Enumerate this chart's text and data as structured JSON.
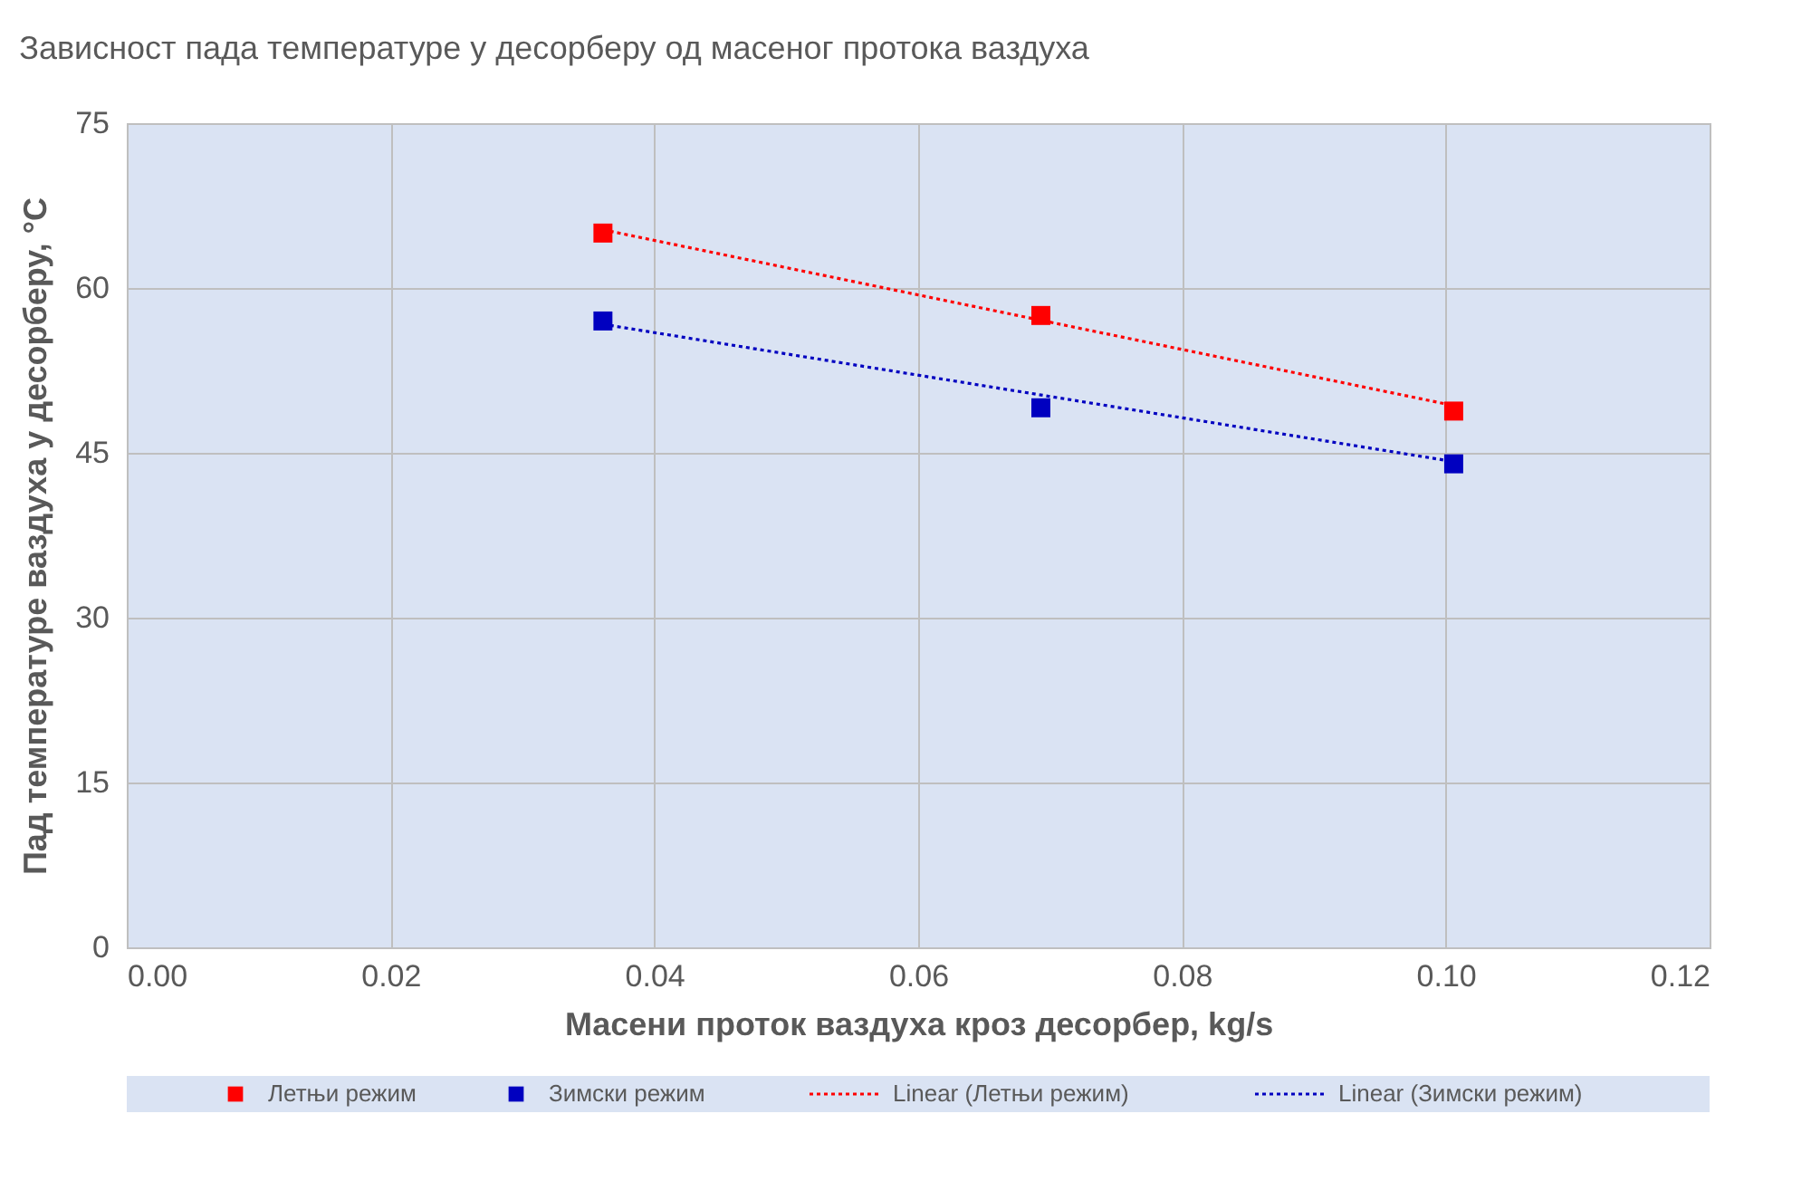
{
  "chart_data": {
    "type": "scatter",
    "title": "Зависност пада температуре у десорберу од масеног протока ваздуха",
    "xlabel": "Масени проток ваздуха кроз десорбер, kg/s",
    "ylabel": "Пад температуре ваздуха у десорберу, °C",
    "xlim": [
      0,
      0.12
    ],
    "xticks": [
      {
        "value": 0,
        "label": "0.00"
      },
      {
        "value": 0.02,
        "label": "0.02"
      },
      {
        "value": 0.04,
        "label": "0.04"
      },
      {
        "value": 0.06,
        "label": "0.06"
      },
      {
        "value": 0.08,
        "label": "0.08"
      },
      {
        "value": 0.1,
        "label": "0.10"
      },
      {
        "value": 0.12,
        "label": "0.12"
      }
    ],
    "ylim": [
      0,
      75
    ],
    "yticks": [
      0,
      15,
      30,
      45,
      60,
      75
    ],
    "grid": true,
    "legend": "bottom",
    "marker": "square",
    "series": [
      {
        "name": "Летњи режим",
        "color": "#ff0000",
        "x": [
          0.0361,
          0.0693,
          0.1006
        ],
        "values": [
          65,
          57.5,
          48.8
        ]
      },
      {
        "name": "Зимски режим",
        "color": "#0000c0",
        "x": [
          0.0361,
          0.0693,
          0.1006
        ],
        "values": [
          57,
          49.1,
          44
        ]
      },
      {
        "name": "Linear (Летњи режим)",
        "type": "line",
        "marker": "none",
        "line_style": "dotted",
        "color": "#ff0000",
        "x": [
          0.0361,
          0.1006
        ],
        "values": [
          65.3,
          49.3
        ]
      },
      {
        "name": "Linear (Зимски режим)",
        "type": "line",
        "marker": "none",
        "line_style": "dotted",
        "color": "#0000c0",
        "x": [
          0.0361,
          0.1006
        ],
        "values": [
          56.7,
          44.2
        ]
      }
    ]
  }
}
